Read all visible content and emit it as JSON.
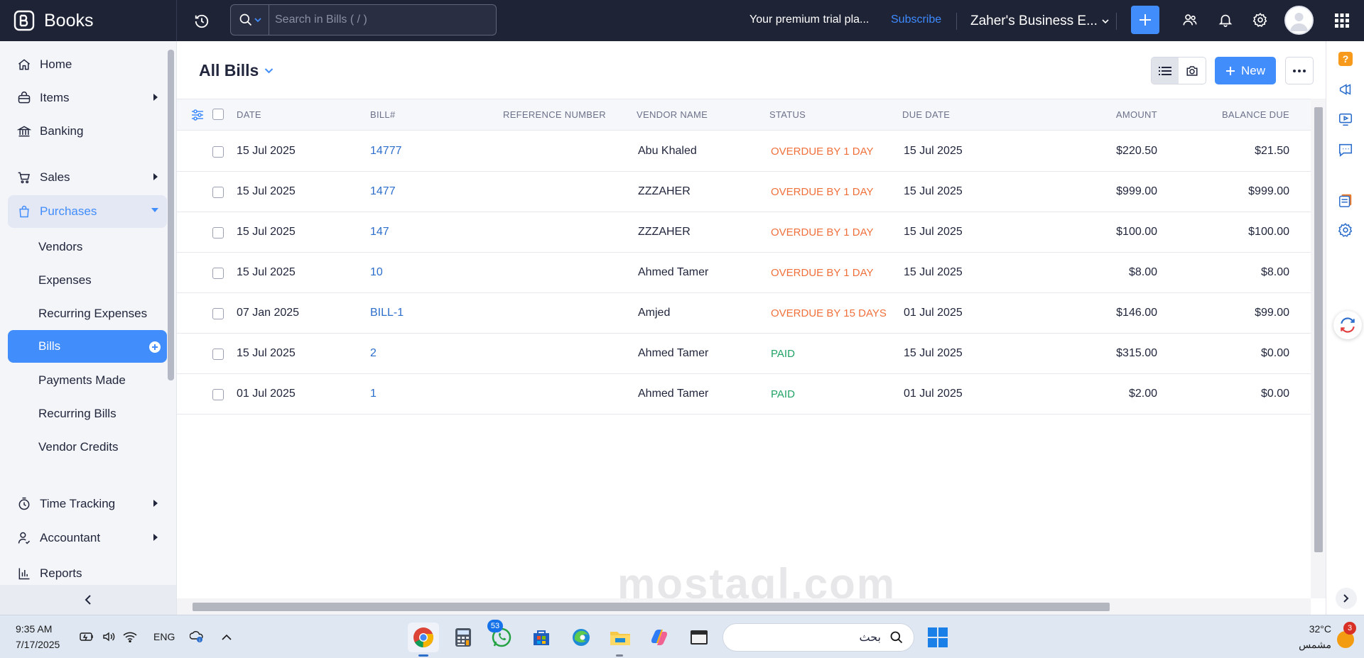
{
  "app": {
    "name": "Books"
  },
  "search": {
    "placeholder": "Search in Bills ( / )"
  },
  "header": {
    "trial_text": "Your premium trial pla...",
    "subscribe_label": "Subscribe",
    "org_name": "Zaher's Business E..."
  },
  "sidebar": {
    "items": [
      {
        "label": "Home",
        "icon": "home-icon"
      },
      {
        "label": "Items",
        "icon": "items-icon"
      },
      {
        "label": "Banking",
        "icon": "bank-icon"
      },
      {
        "label": "Sales",
        "icon": "cart-icon"
      },
      {
        "label": "Purchases",
        "icon": "bag-icon"
      },
      {
        "label": "Time Tracking",
        "icon": "clock-icon"
      },
      {
        "label": "Accountant",
        "icon": "accountant-icon"
      },
      {
        "label": "Reports",
        "icon": "reports-icon"
      }
    ],
    "purchases_sub": [
      "Vendors",
      "Expenses",
      "Recurring Expenses",
      "Bills",
      "Payments Made",
      "Recurring Bills",
      "Vendor Credits"
    ]
  },
  "page": {
    "title": "All Bills",
    "new_label": "New"
  },
  "table": {
    "columns": [
      "DATE",
      "BILL#",
      "REFERENCE NUMBER",
      "VENDOR NAME",
      "STATUS",
      "DUE DATE",
      "AMOUNT",
      "BALANCE DUE"
    ],
    "rows": [
      {
        "date": "15 Jul 2025",
        "bill": "14777",
        "ref": "",
        "vendor": "Abu Khaled",
        "status": "OVERDUE BY 1 DAY",
        "status_type": "overdue",
        "due": "15 Jul 2025",
        "amount": "$220.50",
        "balance": "$21.50"
      },
      {
        "date": "15 Jul 2025",
        "bill": "1477",
        "ref": "",
        "vendor": "ZZZAHER",
        "status": "OVERDUE BY 1 DAY",
        "status_type": "overdue",
        "due": "15 Jul 2025",
        "amount": "$999.00",
        "balance": "$999.00"
      },
      {
        "date": "15 Jul 2025",
        "bill": "147",
        "ref": "",
        "vendor": "ZZZAHER",
        "status": "OVERDUE BY 1 DAY",
        "status_type": "overdue",
        "due": "15 Jul 2025",
        "amount": "$100.00",
        "balance": "$100.00"
      },
      {
        "date": "15 Jul 2025",
        "bill": "10",
        "ref": "",
        "vendor": "Ahmed Tamer",
        "status": "OVERDUE BY 1 DAY",
        "status_type": "overdue",
        "due": "15 Jul 2025",
        "amount": "$8.00",
        "balance": "$8.00"
      },
      {
        "date": "07 Jan 2025",
        "bill": "BILL-1",
        "ref": "",
        "vendor": "Amjed",
        "status": "OVERDUE BY 15 DAYS",
        "status_type": "overdue",
        "due": "01 Jul 2025",
        "amount": "$146.00",
        "balance": "$99.00"
      },
      {
        "date": "15 Jul 2025",
        "bill": "2",
        "ref": "",
        "vendor": "Ahmed Tamer",
        "status": "PAID",
        "status_type": "paid",
        "due": "15 Jul 2025",
        "amount": "$315.00",
        "balance": "$0.00"
      },
      {
        "date": "01 Jul 2025",
        "bill": "1",
        "ref": "",
        "vendor": "Ahmed Tamer",
        "status": "PAID",
        "status_type": "paid",
        "due": "01 Jul 2025",
        "amount": "$2.00",
        "balance": "$0.00"
      }
    ]
  },
  "watermark": "mostaql.com",
  "taskbar": {
    "time": "9:35 AM",
    "date": "7/17/2025",
    "lang": "ENG",
    "search_placeholder": "بحث",
    "whatsapp_badge": "53",
    "weather_temp": "32°C",
    "weather_desc": "مشمس",
    "weather_badge": "3"
  },
  "colors": {
    "accent": "#408dfb",
    "topbar": "#1f2336",
    "overdue": "#f0703b",
    "paid": "#21a366",
    "link": "#2c6ecb"
  }
}
